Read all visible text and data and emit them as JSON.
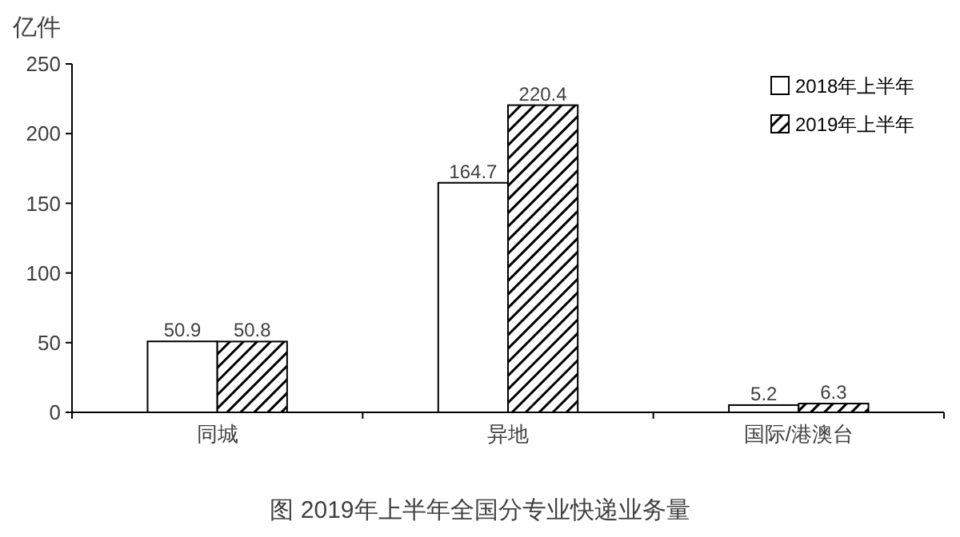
{
  "chart_data": {
    "type": "bar",
    "title": "图 2019年上半年全国分专业快递业务量",
    "ylabel": "亿件",
    "categories": [
      "同城",
      "异地",
      "国际/港澳台"
    ],
    "series": [
      {
        "name": "2018年上半年",
        "color": "#ffffff",
        "values": [
          50.9,
          164.7,
          5.2
        ]
      },
      {
        "name": "2019年上半年",
        "color": "#000000",
        "values": [
          50.8,
          220.4,
          6.3
        ]
      }
    ],
    "ylim": [
      0,
      250
    ],
    "yticks": [
      0,
      50,
      100,
      150,
      200,
      250
    ],
    "data_labels": true,
    "legend": "top right",
    "grid": false
  }
}
